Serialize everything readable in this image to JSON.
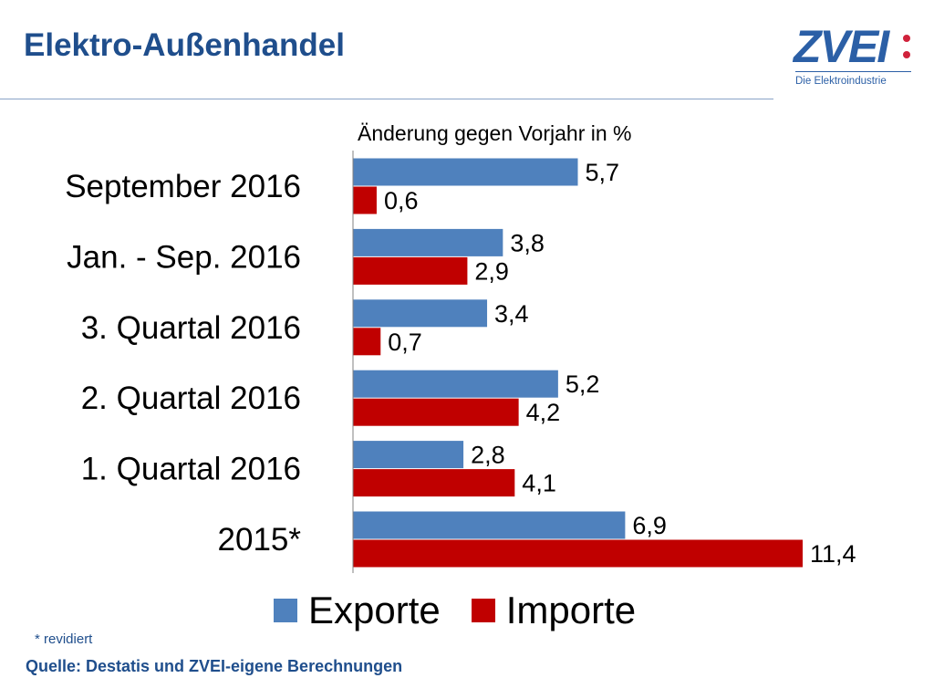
{
  "header": {
    "title": "Elektro-Außenhandel",
    "logo_text": "ZVEI:",
    "logo_tagline": "Die Elektroindustrie"
  },
  "footer": {
    "note": "* revidiert",
    "source": "Quelle: Destatis und ZVEI-eigene Berechnungen"
  },
  "colors": {
    "exporte": "#4f81bd",
    "importe": "#c00000"
  },
  "chart_data": {
    "type": "bar",
    "orientation": "horizontal",
    "title": "Änderung gegen Vorjahr in %",
    "categories": [
      "September 2016",
      "Jan. - Sep. 2016",
      "3. Quartal 2016",
      "2. Quartal 2016",
      "1. Quartal 2016",
      "2015*"
    ],
    "series": [
      {
        "name": "Exporte",
        "values": [
          5.7,
          3.8,
          3.4,
          5.2,
          2.8,
          6.9
        ],
        "labels": [
          "5,7",
          "3,8",
          "3,4",
          "5,2",
          "2,8",
          "6,9"
        ]
      },
      {
        "name": "Importe",
        "values": [
          0.6,
          2.9,
          0.7,
          4.2,
          4.1,
          11.4
        ],
        "labels": [
          "0,6",
          "2,9",
          "0,7",
          "4,2",
          "4,1",
          "11,4"
        ]
      }
    ],
    "xlim": [
      0,
      11.4
    ],
    "grid": false,
    "legend": "bottom"
  }
}
